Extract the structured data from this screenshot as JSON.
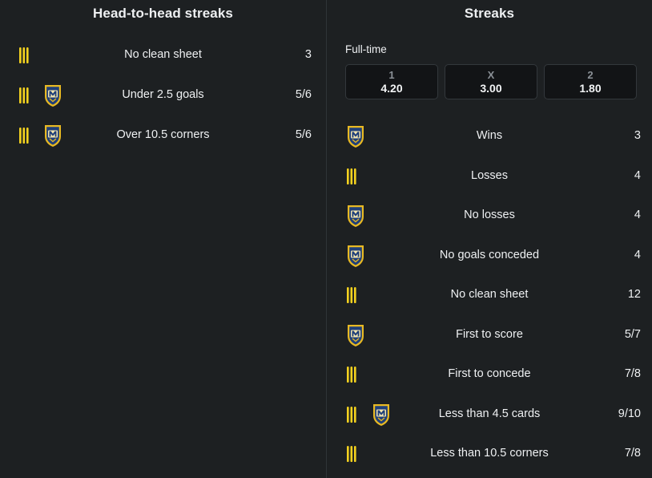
{
  "h2h": {
    "title": "Head-to-head streaks",
    "rows": [
      {
        "label": "No clean sheet",
        "value": "3",
        "icons": [
          "stripes-icon"
        ]
      },
      {
        "label": "Under 2.5 goals",
        "value": "5/6",
        "icons": [
          "stripes-icon",
          "crest-icon"
        ]
      },
      {
        "label": "Over 10.5 corners",
        "value": "5/6",
        "icons": [
          "stripes-icon",
          "crest-icon"
        ]
      }
    ]
  },
  "streaks": {
    "title": "Streaks",
    "fulltime_label": "Full-time",
    "odds": [
      {
        "key": "1",
        "value": "4.20"
      },
      {
        "key": "X",
        "value": "3.00"
      },
      {
        "key": "2",
        "value": "1.80"
      }
    ],
    "rows": [
      {
        "label": "Wins",
        "value": "3",
        "icons": [
          "crest-icon"
        ]
      },
      {
        "label": "Losses",
        "value": "4",
        "icons": [
          "stripes-icon"
        ]
      },
      {
        "label": "No losses",
        "value": "4",
        "icons": [
          "crest-icon"
        ]
      },
      {
        "label": "No goals conceded",
        "value": "4",
        "icons": [
          "crest-icon"
        ]
      },
      {
        "label": "No clean sheet",
        "value": "12",
        "icons": [
          "stripes-icon"
        ]
      },
      {
        "label": "First to score",
        "value": "5/7",
        "icons": [
          "crest-icon"
        ]
      },
      {
        "label": "First to concede",
        "value": "7/8",
        "icons": [
          "stripes-icon"
        ]
      },
      {
        "label": "Less than 4.5 cards",
        "value": "9/10",
        "icons": [
          "stripes-icon",
          "crest-icon"
        ]
      },
      {
        "label": "Less than 10.5 corners",
        "value": "7/8",
        "icons": [
          "stripes-icon"
        ]
      }
    ]
  },
  "colors": {
    "background": "#1d2022",
    "stripe_yellow": "#f4d21f",
    "crest_navy": "#1f3f7a",
    "crest_gold": "#e8b923"
  }
}
